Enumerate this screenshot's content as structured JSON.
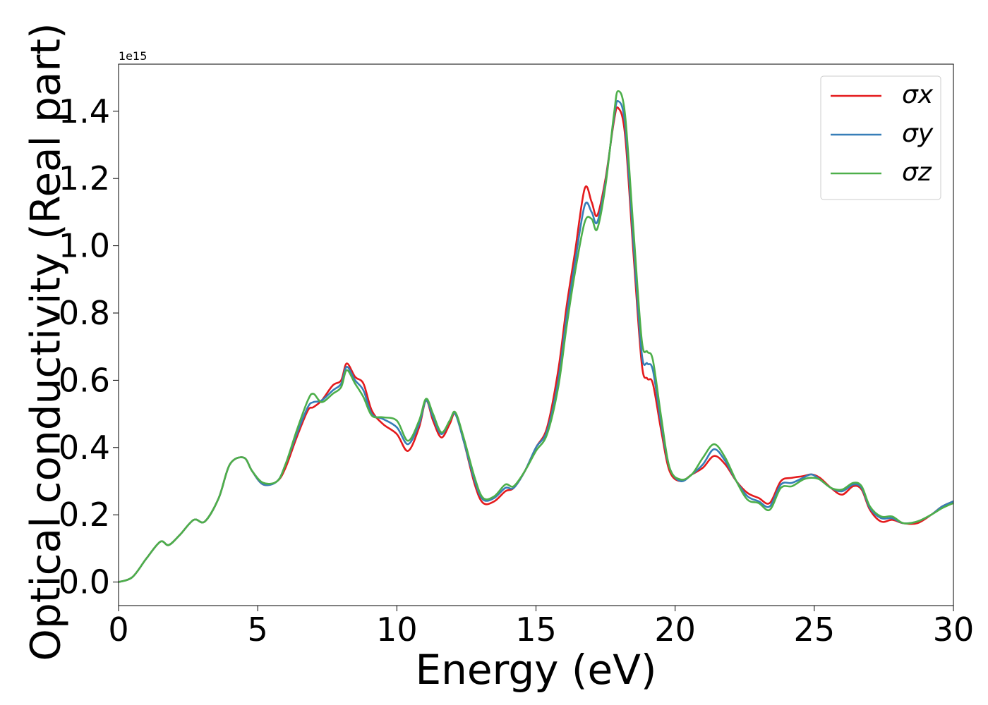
{
  "chart_data": {
    "type": "line",
    "title": "",
    "xlabel": "Energy (eV)",
    "ylabel": "Optical conductivity (Real part)",
    "y_offset_label": "1e15",
    "xlim": [
      0,
      30
    ],
    "ylim": [
      -0.07,
      1.54
    ],
    "xticks": [
      0,
      5,
      10,
      15,
      20,
      25,
      30
    ],
    "xtick_labels": [
      "0",
      "5",
      "10",
      "15",
      "20",
      "25",
      "30"
    ],
    "yticks": [
      0.0,
      0.2,
      0.4,
      0.6,
      0.8,
      1.0,
      1.2,
      1.4
    ],
    "ytick_labels": [
      "0.0",
      "0.2",
      "0.4",
      "0.6",
      "0.8",
      "1.0",
      "1.2",
      "1.4"
    ],
    "grid": false,
    "legend_position": "top-right",
    "x": [
      0,
      0.5,
      1,
      1.5,
      1.8,
      2.2,
      2.7,
      3.1,
      3.6,
      4.0,
      4.5,
      4.8,
      5.2,
      5.7,
      6.0,
      6.4,
      6.8,
      7.0,
      7.3,
      7.7,
      8.0,
      8.2,
      8.5,
      8.8,
      9.1,
      9.5,
      10.0,
      10.4,
      10.8,
      11.05,
      11.3,
      11.6,
      11.9,
      12.1,
      12.4,
      12.8,
      13.1,
      13.5,
      13.9,
      14.2,
      14.6,
      15.0,
      15.4,
      15.8,
      16.1,
      16.4,
      16.75,
      17.0,
      17.2,
      17.5,
      17.8,
      17.95,
      18.2,
      18.5,
      18.8,
      19.0,
      19.2,
      19.5,
      19.8,
      20.2,
      20.6,
      21.0,
      21.4,
      21.8,
      22.2,
      22.6,
      23.0,
      23.4,
      23.8,
      24.2,
      24.6,
      24.9,
      25.2,
      25.6,
      26.0,
      26.4,
      26.7,
      27.0,
      27.4,
      27.8,
      28.2,
      28.7,
      29.2,
      29.6,
      30.0
    ],
    "series": [
      {
        "name": "σx",
        "color": "#e41a1c",
        "values": [
          0.0,
          0.015,
          0.07,
          0.12,
          0.11,
          0.14,
          0.185,
          0.18,
          0.25,
          0.35,
          0.37,
          0.33,
          0.29,
          0.3,
          0.34,
          0.43,
          0.51,
          0.52,
          0.54,
          0.585,
          0.6,
          0.65,
          0.61,
          0.59,
          0.51,
          0.47,
          0.44,
          0.39,
          0.46,
          0.54,
          0.48,
          0.43,
          0.47,
          0.5,
          0.42,
          0.29,
          0.235,
          0.24,
          0.27,
          0.28,
          0.33,
          0.4,
          0.46,
          0.63,
          0.82,
          0.98,
          1.17,
          1.13,
          1.09,
          1.2,
          1.37,
          1.41,
          1.33,
          0.98,
          0.65,
          0.605,
          0.59,
          0.45,
          0.33,
          0.3,
          0.32,
          0.34,
          0.375,
          0.35,
          0.3,
          0.265,
          0.25,
          0.235,
          0.3,
          0.31,
          0.315,
          0.32,
          0.31,
          0.28,
          0.26,
          0.285,
          0.275,
          0.215,
          0.18,
          0.185,
          0.175,
          0.175,
          0.2,
          0.225,
          0.24
        ]
      },
      {
        "name": "σy",
        "color": "#377eb8",
        "values": [
          0.0,
          0.015,
          0.07,
          0.12,
          0.11,
          0.14,
          0.185,
          0.18,
          0.25,
          0.35,
          0.37,
          0.33,
          0.29,
          0.3,
          0.35,
          0.44,
          0.52,
          0.535,
          0.54,
          0.57,
          0.59,
          0.64,
          0.6,
          0.57,
          0.5,
          0.485,
          0.46,
          0.41,
          0.47,
          0.54,
          0.49,
          0.44,
          0.48,
          0.5,
          0.42,
          0.3,
          0.245,
          0.25,
          0.28,
          0.28,
          0.33,
          0.4,
          0.45,
          0.6,
          0.79,
          0.95,
          1.12,
          1.1,
          1.07,
          1.19,
          1.38,
          1.43,
          1.36,
          1.01,
          0.68,
          0.65,
          0.63,
          0.47,
          0.34,
          0.3,
          0.32,
          0.35,
          0.395,
          0.36,
          0.3,
          0.255,
          0.24,
          0.225,
          0.29,
          0.295,
          0.31,
          0.32,
          0.305,
          0.28,
          0.27,
          0.29,
          0.28,
          0.22,
          0.19,
          0.19,
          0.175,
          0.18,
          0.2,
          0.225,
          0.24
        ]
      },
      {
        "name": "σz",
        "color": "#4daf4a",
        "values": [
          0.0,
          0.015,
          0.07,
          0.12,
          0.11,
          0.14,
          0.185,
          0.18,
          0.25,
          0.35,
          0.37,
          0.33,
          0.295,
          0.3,
          0.35,
          0.45,
          0.54,
          0.56,
          0.535,
          0.56,
          0.58,
          0.63,
          0.59,
          0.55,
          0.495,
          0.49,
          0.48,
          0.42,
          0.48,
          0.545,
          0.5,
          0.445,
          0.48,
          0.505,
          0.43,
          0.31,
          0.25,
          0.255,
          0.29,
          0.285,
          0.33,
          0.39,
          0.44,
          0.58,
          0.76,
          0.92,
          1.07,
          1.08,
          1.05,
          1.18,
          1.39,
          1.46,
          1.39,
          1.05,
          0.72,
          0.685,
          0.66,
          0.49,
          0.34,
          0.305,
          0.32,
          0.37,
          0.41,
          0.37,
          0.3,
          0.245,
          0.235,
          0.215,
          0.28,
          0.285,
          0.305,
          0.31,
          0.305,
          0.28,
          0.275,
          0.295,
          0.285,
          0.225,
          0.195,
          0.195,
          0.175,
          0.18,
          0.2,
          0.22,
          0.235
        ]
      }
    ]
  }
}
